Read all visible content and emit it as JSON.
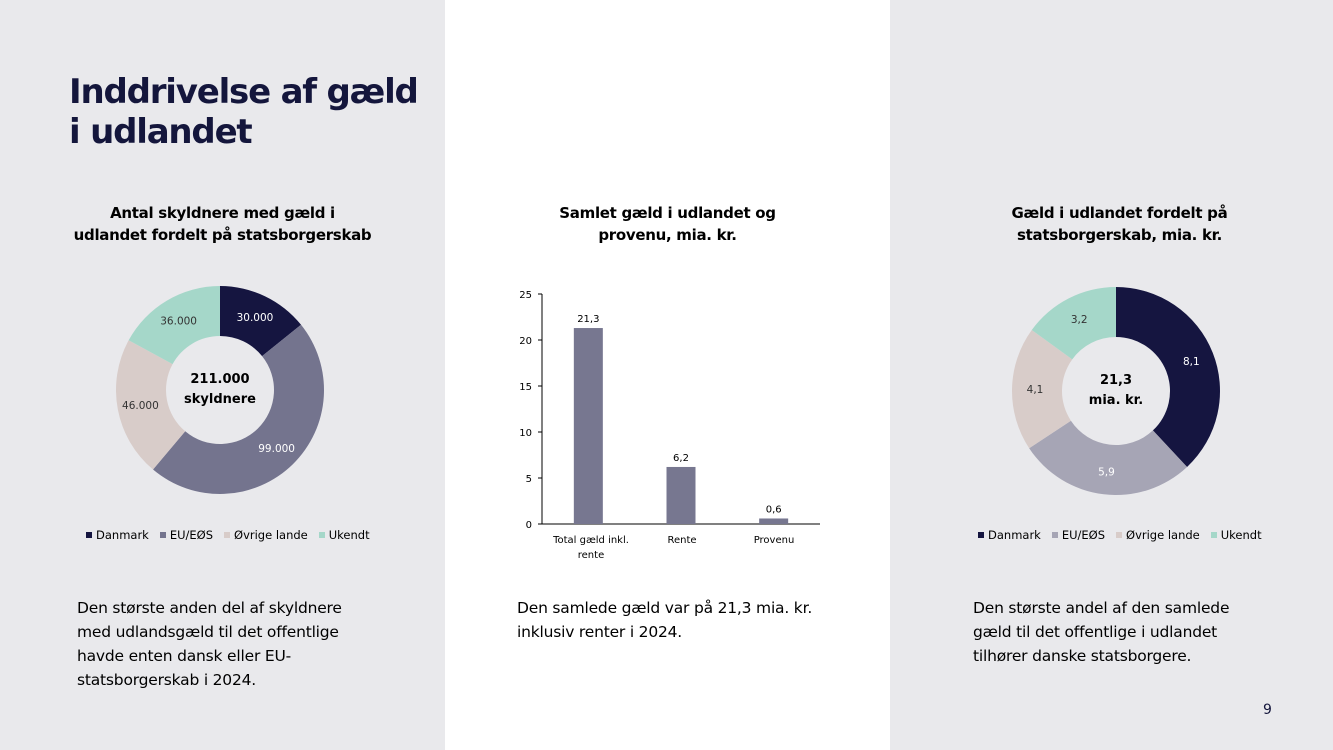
{
  "page": {
    "title_lines": [
      "Inddrivelse af gæld",
      "i udlandet"
    ],
    "page_number": "9"
  },
  "colors": {
    "danmark": "#151540",
    "eu_eos": "#74748e",
    "ovrige": "#d8ccc9",
    "ukendt": "#a5d7c9",
    "bar": "#777790",
    "eu_eos_right": "#a6a5b5"
  },
  "left": {
    "title_lines": [
      "Antal skyldnere med gæld i",
      "udlandet fordelt på statsborgerskab"
    ],
    "center_lines": [
      "211.000",
      "skyldnere"
    ],
    "legend": [
      "Danmark",
      "EU/EØS",
      "Øvrige lande",
      "Ukendt"
    ],
    "caption_lines": [
      "Den største anden del af skyldnere",
      "med udlandsgæld til det offentlige",
      "havde enten dansk eller EU-",
      "statsborgerskab i 2024."
    ]
  },
  "middle": {
    "title_lines": [
      "Samlet gæld i udlandet og",
      "provenu, mia. kr."
    ],
    "category_lines": [
      [
        "Total gæld inkl.",
        "rente"
      ],
      [
        "Rente"
      ],
      [
        "Provenu"
      ]
    ],
    "caption_lines": [
      "Den samlede gæld var på 21,3 mia. kr.",
      "inklusiv renter i 2024."
    ]
  },
  "right": {
    "title_lines": [
      "Gæld i udlandet fordelt på",
      "statsborgerskab, mia. kr."
    ],
    "center_lines": [
      "21,3",
      "mia. kr."
    ],
    "legend": [
      "Danmark",
      "EU/EØS",
      "Øvrige lande",
      "Ukendt"
    ],
    "caption_lines": [
      "Den største andel af den samlede",
      "gæld til det offentlige i udlandet",
      "tilhører danske statsborgere."
    ]
  },
  "chart_data": [
    {
      "type": "pie",
      "title": "Antal skyldnere med gæld i udlandet fordelt på statsborgerskab",
      "categories": [
        "Danmark",
        "EU/EØS",
        "Øvrige lande",
        "Ukendt"
      ],
      "values": [
        30000,
        99000,
        46000,
        36000
      ],
      "labels": [
        "30.000",
        "99.000",
        "46.000",
        "36.000"
      ],
      "legend": "bottom"
    },
    {
      "type": "bar",
      "title": "Samlet gæld i udlandet og provenu, mia. kr.",
      "categories": [
        "Total gæld inkl. rente",
        "Rente",
        "Provenu"
      ],
      "values": [
        21.3,
        6.2,
        0.6
      ],
      "labels": [
        "21,3",
        "6,2",
        "0,6"
      ],
      "ylim": [
        0,
        25
      ],
      "yticks": [
        0,
        5,
        10,
        15,
        20,
        25
      ],
      "grid": false
    },
    {
      "type": "pie",
      "title": "Gæld i udlandet fordelt på statsborgerskab, mia. kr.",
      "categories": [
        "Danmark",
        "EU/EØS",
        "Øvrige lande",
        "Ukendt"
      ],
      "values": [
        8.1,
        5.9,
        4.1,
        3.2
      ],
      "labels": [
        "8,1",
        "5,9",
        "4,1",
        "3,2"
      ],
      "legend": "bottom"
    }
  ]
}
